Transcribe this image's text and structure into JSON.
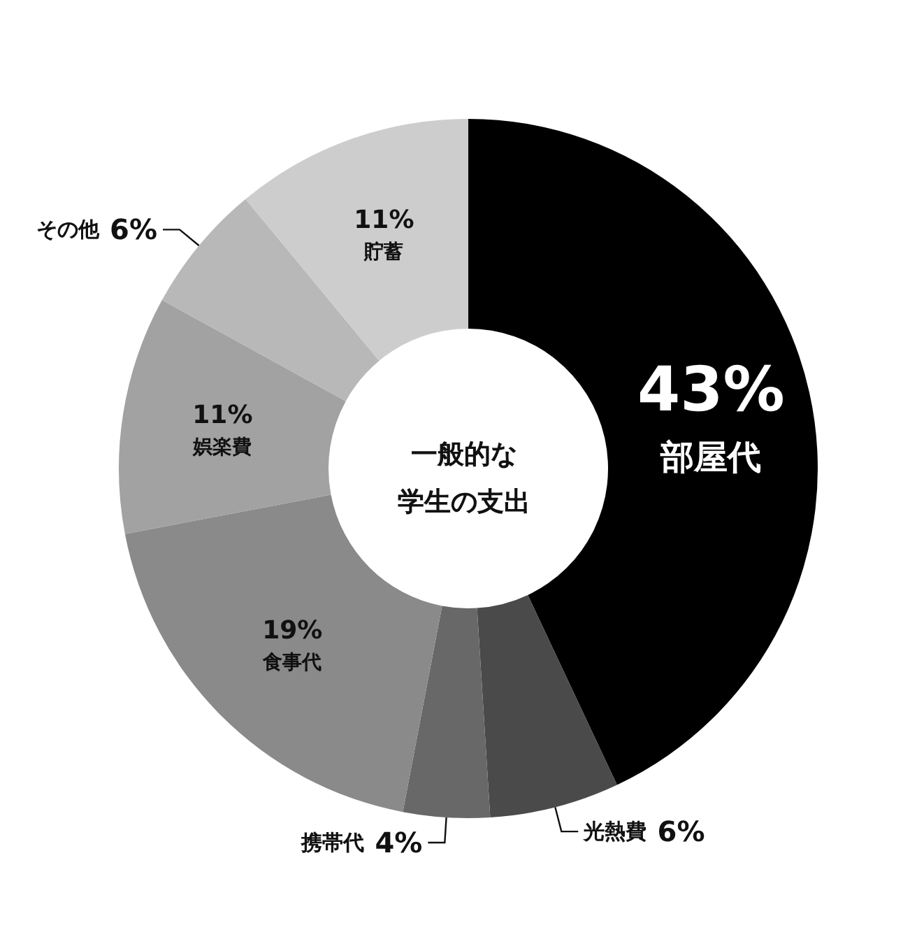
{
  "chart_data": {
    "type": "donut",
    "title": "一般的な学生の支出",
    "categories": [
      "部屋代",
      "光熱費",
      "携帯代",
      "食事代",
      "娯楽費",
      "その他",
      "貯蓄"
    ],
    "values": [
      43,
      6,
      4,
      19,
      11,
      6,
      11
    ],
    "value_labels": [
      "43%",
      "6%",
      "4%",
      "19%",
      "11%",
      "6%",
      "11%"
    ],
    "colors": [
      "#000000",
      "#4a4a4a",
      "#686868",
      "#8a8a8a",
      "#a2a2a2",
      "#b8b8b8",
      "#cdcdcd"
    ],
    "legend": false
  }
}
